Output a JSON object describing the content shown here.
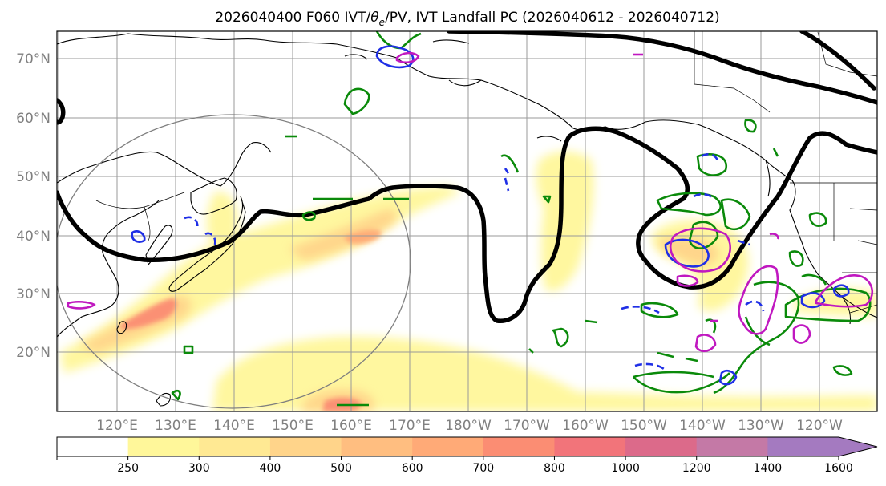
{
  "title": {
    "prefix": "2026040400 F060 IVT/",
    "theta": "θ",
    "theta_sub": "e",
    "suffix": "/PV, IVT Landfall PC (2026040612 - 2026040712)"
  },
  "map": {
    "lat_labels": [
      "70°N",
      "60°N",
      "50°N",
      "40°N",
      "30°N",
      "20°N"
    ],
    "lon_labels": [
      "120°E",
      "130°E",
      "140°E",
      "150°E",
      "160°E",
      "170°E",
      "180°W",
      "170°W",
      "160°W",
      "150°W",
      "140°W",
      "130°W",
      "120°W"
    ]
  },
  "colorbar": {
    "ticks": [
      "250",
      "300",
      "400",
      "500",
      "600",
      "700",
      "800",
      "1000",
      "1200",
      "1400",
      "1600"
    ],
    "colors": [
      "#ffffff",
      "#fff79a",
      "#ffe993",
      "#ffd48a",
      "#ffbe80",
      "#ffaa77",
      "#fb8d73",
      "#f2747a",
      "#dc6a8a",
      "#c479a6",
      "#a47ac0"
    ],
    "extend": "max"
  },
  "colors": {
    "jet": "#000000",
    "pv_green": "#0a8a0a",
    "pv_blue": "#1f2fe6",
    "pv_magenta": "#c018c0"
  }
}
